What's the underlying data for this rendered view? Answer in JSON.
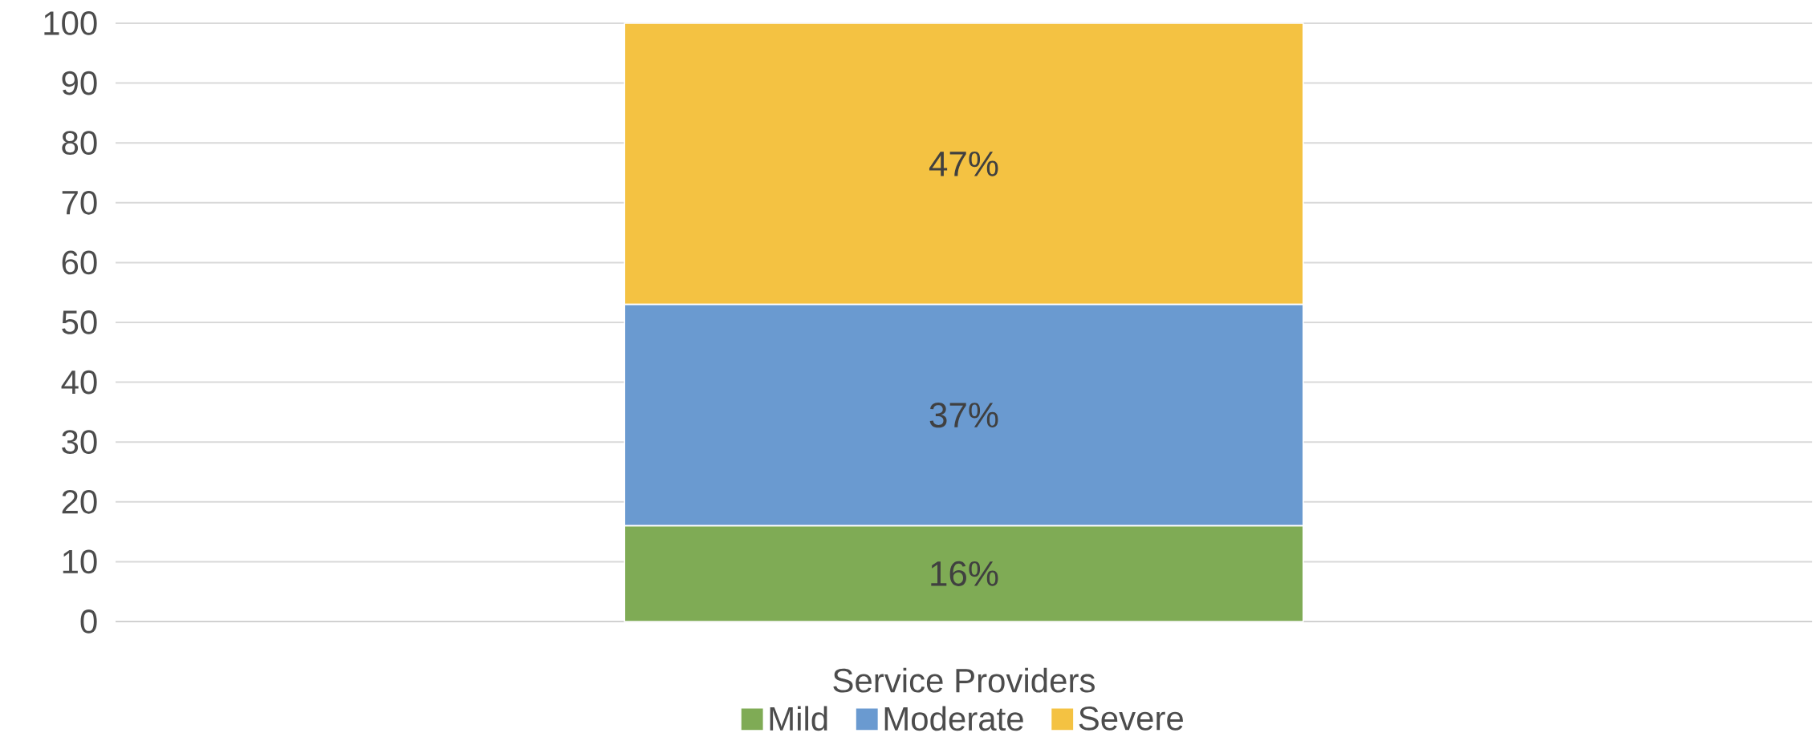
{
  "chart_data": {
    "type": "bar",
    "stacked": true,
    "categories": [
      "Service Providers"
    ],
    "series": [
      {
        "name": "Mild",
        "color": "#7fab55",
        "values": [
          16
        ],
        "value_labels": [
          "16%"
        ]
      },
      {
        "name": "Moderate",
        "color": "#6a9ad0",
        "values": [
          37
        ],
        "value_labels": [
          "37%"
        ]
      },
      {
        "name": "Severe",
        "color": "#f4c242",
        "values": [
          47
        ],
        "value_labels": [
          "47%"
        ]
      }
    ],
    "ylim": [
      0,
      100
    ],
    "yticks": [
      0,
      10,
      20,
      30,
      40,
      50,
      60,
      70,
      80,
      90,
      100
    ],
    "grid": "y",
    "legend": "bottom"
  }
}
